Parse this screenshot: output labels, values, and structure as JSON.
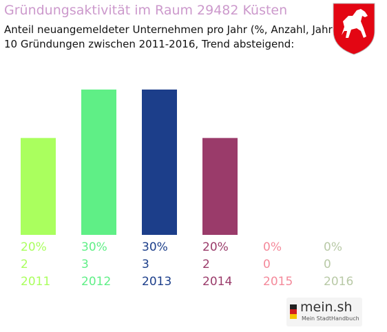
{
  "header": {
    "title": "Gründungsaktivität im Raum 29482 Küsten",
    "subtitle_line1": "Anteil neuangemeldeter Unternehmen pro Jahr (%, Anzahl, Jahr)",
    "subtitle_line2": "10 Gründungen zwischen 2011-2016, Trend absteigend:"
  },
  "crest": {
    "icon": "lower-saxony-horse-crest",
    "color": "#e30613"
  },
  "chart_data": {
    "type": "bar",
    "categories": [
      "2011",
      "2012",
      "2013",
      "2014",
      "2015",
      "2016"
    ],
    "percent_labels": [
      "20%",
      "30%",
      "30%",
      "20%",
      "0%",
      "0%"
    ],
    "count_labels": [
      "2",
      "3",
      "3",
      "2",
      "0",
      "0"
    ],
    "values": [
      20,
      30,
      30,
      20,
      0,
      0
    ],
    "counts": [
      2,
      3,
      3,
      2,
      0,
      0
    ],
    "colors": [
      "#aaff5e",
      "#5fef86",
      "#1c3e8a",
      "#9a3b6a",
      "#f4899a",
      "#b8c9a6"
    ],
    "ylim": [
      0,
      30
    ],
    "grid": false,
    "legend": "none"
  },
  "branding": {
    "name": "mein.sh",
    "tagline": "Mein StadtHandbuch"
  }
}
